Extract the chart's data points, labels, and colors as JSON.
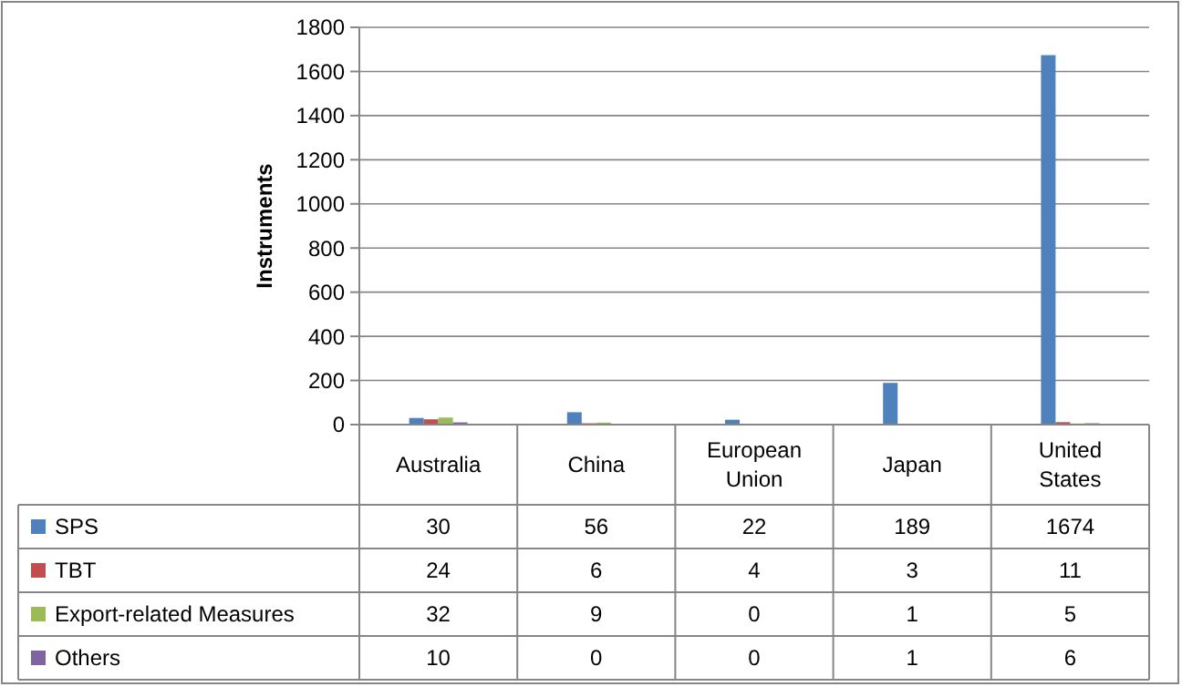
{
  "chart_data": {
    "type": "bar",
    "ylabel": "Instruments",
    "categories": [
      "Australia",
      "China",
      "European Union",
      "Japan",
      "United States"
    ],
    "series": [
      {
        "name": "SPS",
        "color": "#4f81bd",
        "values": [
          30,
          56,
          22,
          189,
          1674
        ]
      },
      {
        "name": "TBT",
        "color": "#c0504d",
        "values": [
          24,
          6,
          4,
          3,
          11
        ]
      },
      {
        "name": "Export-related Measures",
        "color": "#9bbb59",
        "values": [
          32,
          9,
          0,
          1,
          5
        ]
      },
      {
        "name": "Others",
        "color": "#8064a2",
        "values": [
          10,
          0,
          0,
          1,
          6
        ]
      }
    ],
    "ylim": [
      0,
      1800
    ],
    "yticks": [
      0,
      200,
      400,
      600,
      800,
      1000,
      1200,
      1400,
      1600,
      1800
    ],
    "grid": "y",
    "legend": "bottom",
    "data_labels": true
  }
}
